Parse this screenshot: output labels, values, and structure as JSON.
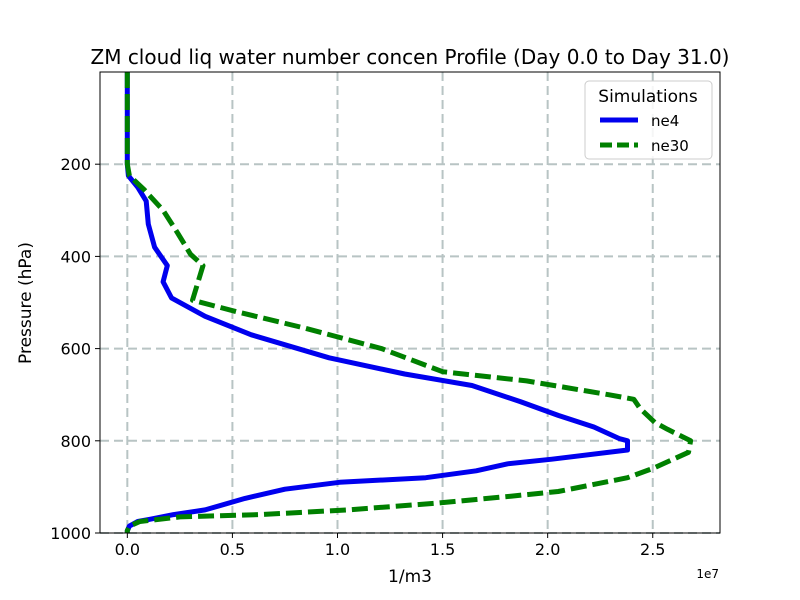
{
  "chart_data": {
    "type": "line",
    "title": "ZM cloud liq water number concen Profile (Day 0.0 to Day 31.0)",
    "xlabel": "1/m3",
    "ylabel": "Pressure (hPa)",
    "x_offset_label": "1e7",
    "xlim": [
      -1300000,
      28200000
    ],
    "ylim": [
      1000,
      0
    ],
    "y_inverted": true,
    "grid": true,
    "x_ticks": [
      0,
      5000000,
      10000000,
      15000000,
      20000000,
      25000000
    ],
    "x_tick_labels": [
      "0.0",
      "0.5",
      "1.0",
      "1.5",
      "2.0",
      "2.5"
    ],
    "y_ticks": [
      200,
      400,
      600,
      800,
      1000
    ],
    "y_tick_labels": [
      "200",
      "400",
      "600",
      "800",
      "1000"
    ],
    "legend": {
      "title": "Simulations",
      "placement": "top-right"
    },
    "series": [
      {
        "name": "ne4",
        "color": "#0000ee",
        "style": "solid",
        "points": [
          [
            0,
            0
          ],
          [
            0,
            100
          ],
          [
            0,
            200
          ],
          [
            50000,
            225
          ],
          [
            500000,
            250
          ],
          [
            900000,
            280
          ],
          [
            1000000,
            330
          ],
          [
            1300000,
            380
          ],
          [
            1900000,
            420
          ],
          [
            1700000,
            455
          ],
          [
            2100000,
            490
          ],
          [
            3700000,
            530
          ],
          [
            5900000,
            570
          ],
          [
            9600000,
            620
          ],
          [
            13200000,
            655
          ],
          [
            16400000,
            680
          ],
          [
            18700000,
            715
          ],
          [
            20500000,
            745
          ],
          [
            22200000,
            770
          ],
          [
            23400000,
            795
          ],
          [
            23800000,
            800
          ],
          [
            23800000,
            820
          ],
          [
            20200000,
            840
          ],
          [
            18100000,
            850
          ],
          [
            16600000,
            865
          ],
          [
            14200000,
            880
          ],
          [
            10100000,
            890
          ],
          [
            7500000,
            905
          ],
          [
            5600000,
            925
          ],
          [
            3700000,
            950
          ],
          [
            2200000,
            960
          ],
          [
            1100000,
            970
          ],
          [
            500000,
            975
          ],
          [
            100000,
            985
          ],
          [
            0,
            995
          ],
          [
            0,
            1000
          ]
        ]
      },
      {
        "name": "ne30",
        "color": "#008000",
        "style": "dashed",
        "points": [
          [
            0,
            0
          ],
          [
            0,
            100
          ],
          [
            0,
            200
          ],
          [
            100000,
            225
          ],
          [
            800000,
            255
          ],
          [
            1700000,
            300
          ],
          [
            2400000,
            350
          ],
          [
            3000000,
            395
          ],
          [
            3600000,
            420
          ],
          [
            3100000,
            495
          ],
          [
            5200000,
            520
          ],
          [
            8400000,
            555
          ],
          [
            12100000,
            600
          ],
          [
            15000000,
            650
          ],
          [
            19000000,
            670
          ],
          [
            22900000,
            700
          ],
          [
            24100000,
            710
          ],
          [
            24400000,
            730
          ],
          [
            25100000,
            760
          ],
          [
            25700000,
            775
          ],
          [
            26800000,
            800
          ],
          [
            26700000,
            825
          ],
          [
            25000000,
            860
          ],
          [
            23800000,
            880
          ],
          [
            20500000,
            910
          ],
          [
            18300000,
            920
          ],
          [
            14800000,
            935
          ],
          [
            10500000,
            950
          ],
          [
            6300000,
            960
          ],
          [
            2500000,
            965
          ],
          [
            600000,
            975
          ],
          [
            100000,
            985
          ],
          [
            0,
            995
          ],
          [
            0,
            1000
          ]
        ]
      }
    ]
  }
}
